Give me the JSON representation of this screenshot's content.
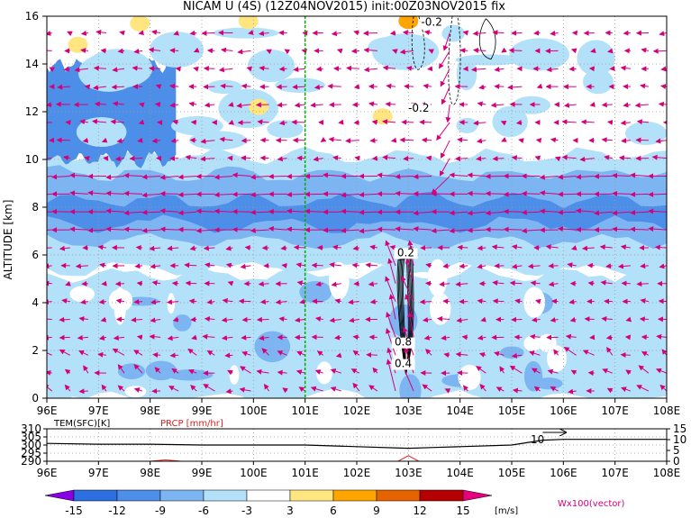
{
  "title": "NICAM U (4S)  (12Z04NOV2015)  init:00Z03NOV2015  fix",
  "chart_data": [
    {
      "type": "heatmap",
      "panel": "main",
      "title": "NICAM U (4S)  (12Z04NOV2015)  init:00Z03NOV2015  fix",
      "ylabel": "ALTITUDE [km]",
      "xlabel": "",
      "x_ticks": [
        "96E",
        "97E",
        "98E",
        "99E",
        "100E",
        "101E",
        "102E",
        "103E",
        "104E",
        "105E",
        "106E",
        "107E",
        "108E"
      ],
      "xlim": [
        96,
        108
      ],
      "y_ticks": [
        0,
        2,
        4,
        6,
        8,
        10,
        12,
        14,
        16
      ],
      "ylim": [
        0,
        16
      ],
      "grid": true,
      "vertical_marker_lon": 101,
      "contour_labels": [
        "-0.2",
        "-0.2",
        "0.2",
        "0.8",
        "0.4"
      ],
      "layers": [
        {
          "name": "easterly core",
          "u_min": -12,
          "u_max": -9,
          "lon_from": 96,
          "lon_to": 108,
          "z_from": 7.3,
          "z_to": 8.3
        },
        {
          "name": "easterly band",
          "u_min": -9,
          "u_max": -6,
          "lon_from": 96,
          "lon_to": 108,
          "z_from": 6.6,
          "z_to": 9.4
        },
        {
          "name": "weak easterly",
          "u_min": -6,
          "u_max": -3,
          "lon_from": 96,
          "lon_to": 108,
          "z_from": 5.4,
          "z_to": 10.2
        },
        {
          "name": "lower troposphere",
          "u_min": -6,
          "u_max": -3,
          "lon_from": 96,
          "lon_to": 108,
          "z_from": 0,
          "z_to": 5.2
        },
        {
          "name": "western upper cell",
          "u_min": -12,
          "u_max": -9,
          "lon_from": 96,
          "lon_to": 98.5,
          "z_from": 10,
          "z_to": 14
        }
      ],
      "positive_patches": [
        {
          "lon": 96.6,
          "z": 14.8,
          "u": 4
        },
        {
          "lon": 97.8,
          "z": 15.7,
          "u": 5
        },
        {
          "lon": 99.9,
          "z": 15.8,
          "u": 4
        },
        {
          "lon": 100.1,
          "z": 12.2,
          "u": 4
        },
        {
          "lon": 102.5,
          "z": 11.8,
          "u": 5
        },
        {
          "lon": 103.0,
          "z": 15.8,
          "u": 8
        }
      ],
      "vector_field": "U-W wind vectors, W x100"
    },
    {
      "type": "line",
      "panel": "bottom",
      "series": [
        {
          "name": "TEM(SFC)[K]",
          "x": [
            96,
            97,
            98,
            99,
            100,
            101,
            102,
            103,
            103.5,
            104,
            105,
            105.6,
            106,
            107,
            108
          ],
          "values": [
            301,
            300.5,
            300.5,
            300,
            300,
            300,
            299,
            298,
            298.5,
            299,
            300,
            303,
            303.5,
            303.5,
            303.5
          ]
        },
        {
          "name": "PRCP [mm/hr]",
          "x": [
            96,
            98,
            98.3,
            98.6,
            99,
            102.8,
            103,
            103.2,
            104,
            108
          ],
          "values": [
            0,
            0,
            0.6,
            0,
            0,
            0,
            2.6,
            0,
            0,
            0
          ]
        }
      ],
      "left_ticks": [
        "310",
        "305",
        "300",
        "295",
        "290"
      ],
      "left_range": [
        290,
        310
      ],
      "right_ticks": [
        "15",
        "10",
        "5",
        "0"
      ],
      "right_range": [
        0,
        15
      ],
      "contour_label": "10",
      "x_ticks": [
        "96E",
        "97E",
        "98E",
        "99E",
        "100E",
        "101E",
        "102E",
        "103E",
        "104E",
        "105E",
        "106E",
        "107E",
        "108E"
      ]
    }
  ],
  "legend": {
    "unit": "[m/s]",
    "vector_note": "Wx100(vector)",
    "colorbar_ticks": [
      "-15",
      "-12",
      "-9",
      "-6",
      "-3",
      "3",
      "6",
      "9",
      "12",
      "15"
    ],
    "colors": [
      "#8a00e6",
      "#2b6fe0",
      "#4d8ee8",
      "#7db4f2",
      "#b4e1fa",
      "#ffffff",
      "#ffe680",
      "#ffa500",
      "#e66400",
      "#b40000",
      "#e6007e"
    ]
  }
}
